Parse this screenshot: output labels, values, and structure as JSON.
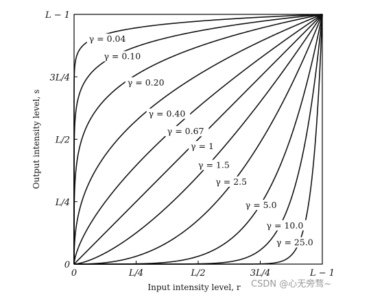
{
  "chart_data": {
    "type": "line",
    "xlabel": "Input intensity level, r",
    "ylabel": "Output intensity level, s",
    "xlim": [
      0,
      1
    ],
    "ylim": [
      0,
      1
    ],
    "grid": false,
    "x_ticks": [
      {
        "value": 0,
        "label": "0"
      },
      {
        "value": 0.25,
        "label": "L/4"
      },
      {
        "value": 0.5,
        "label": "L/2"
      },
      {
        "value": 0.75,
        "label": "3L/4"
      },
      {
        "value": 1,
        "label": "L − 1"
      }
    ],
    "y_ticks": [
      {
        "value": 0,
        "label": "0"
      },
      {
        "value": 0.25,
        "label": "L/4"
      },
      {
        "value": 0.5,
        "label": "L/2"
      },
      {
        "value": 0.75,
        "label": "3L/4"
      },
      {
        "value": 1,
        "label": "L − 1"
      }
    ],
    "function": "s = r^gamma",
    "series": [
      {
        "gamma": 0.04,
        "label": "γ = 0.04",
        "label_at": [
          0.06,
          0.89
        ]
      },
      {
        "gamma": 0.1,
        "label": "γ = 0.10",
        "label_at": [
          0.12,
          0.82
        ]
      },
      {
        "gamma": 0.2,
        "label": "γ = 0.20",
        "label_at": [
          0.215,
          0.715
        ]
      },
      {
        "gamma": 0.4,
        "label": "γ = 0.40",
        "label_at": [
          0.3,
          0.59
        ]
      },
      {
        "gamma": 0.67,
        "label": "γ = 0.67",
        "label_at": [
          0.375,
          0.52
        ]
      },
      {
        "gamma": 1,
        "label": "γ = 1",
        "label_at": [
          0.47,
          0.46
        ]
      },
      {
        "gamma": 1.5,
        "label": "γ = 1.5",
        "label_at": [
          0.5,
          0.385
        ]
      },
      {
        "gamma": 2.5,
        "label": "γ = 2.5",
        "label_at": [
          0.57,
          0.318
        ]
      },
      {
        "gamma": 5.0,
        "label": "γ = 5.0",
        "label_at": [
          0.69,
          0.225
        ]
      },
      {
        "gamma": 10.0,
        "label": "γ = 10.0",
        "label_at": [
          0.775,
          0.143
        ]
      },
      {
        "gamma": 25.0,
        "label": "γ = 25.0",
        "label_at": [
          0.815,
          0.075
        ]
      }
    ]
  },
  "watermark": "CSDN @心无旁骛~"
}
